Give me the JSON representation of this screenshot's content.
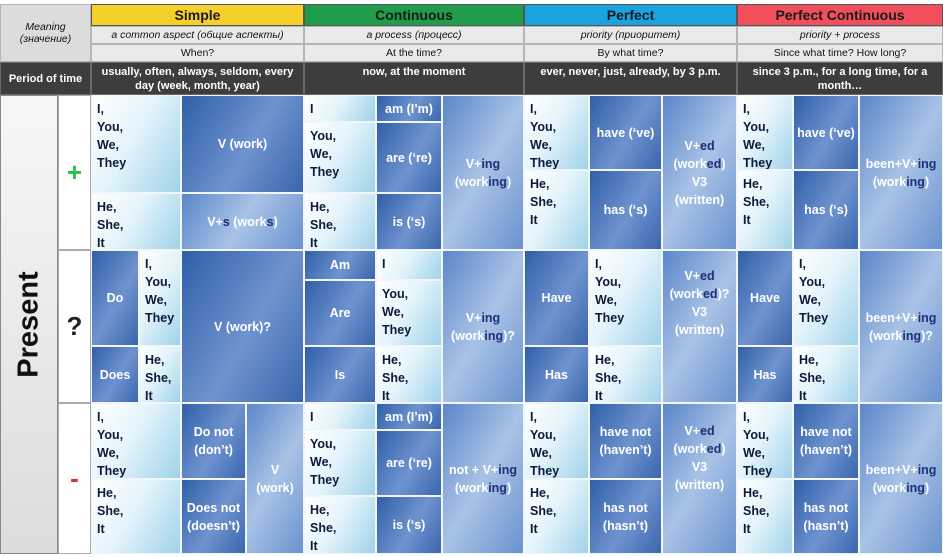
{
  "corner": {
    "meaning": "Meaning",
    "meaning_ru": "(значение)",
    "period": "Period of time"
  },
  "tenses": {
    "simple": {
      "name": "Simple",
      "meaning": "a common aspect (общие аспекты)",
      "question": "When?",
      "period": "usually, often, always, seldom, every day (week, month, year)"
    },
    "continuous": {
      "name": "Continuous",
      "meaning": "a process (процесс)",
      "question": "At the time?",
      "period": "now, at the moment"
    },
    "perfect": {
      "name": "Perfect",
      "meaning": "priority (приоритет)",
      "question": "By what time?",
      "period": "ever, never, just, already, by 3 p.m."
    },
    "perfect_continuous": {
      "name": "Perfect Continuous",
      "meaning": "priority + process",
      "question": "Since what time? How long?",
      "period": "since 3 p.m., for a long time, for a month…"
    }
  },
  "side_label": "Present",
  "signs": {
    "plus": "+",
    "question": "?",
    "minus": "-"
  },
  "pronouns": {
    "i": "I,",
    "i_bare": "I",
    "you": "You,",
    "we": "We,",
    "they": "They",
    "he": "He,",
    "she": "She,",
    "it": "It"
  },
  "simple": {
    "pos_v": "V (work)",
    "pos_vs_a": "V+",
    "pos_vs_b": "s",
    "pos_vs_c": " (work",
    "pos_vs_d": "s",
    "pos_vs_e": ")",
    "q_do": "Do",
    "q_does": "Does",
    "q_v": "V (work)?",
    "neg_do": "Do not (don’t)",
    "neg_does": "Does not (doesn’t)",
    "neg_v": "V (work)"
  },
  "continuous": {
    "am": "am (I’m)",
    "are": "are (‘re)",
    "is": "is (‘s)",
    "ving_a": "V+",
    "ving_b": "ing",
    "ving_c": "(work",
    "ving_d": "ing",
    "ving_e": ")",
    "q_am": "Am",
    "q_are": "Are",
    "q_is": "Is",
    "q_suffix": ")?",
    "neg_prefix": "not + V+"
  },
  "perfect": {
    "have": "have (‘ve)",
    "has": "has (‘s)",
    "ved_a": "V+",
    "ved_b": "ed",
    "ved_c": "(work",
    "ved_d": "ed",
    "ved_e": ")",
    "v3": "V3",
    "written": "(written)",
    "q_suffix": ")?",
    "q_have": "Have",
    "q_has": "Has",
    "neg_have": "have not (haven’t)",
    "neg_has": "has not (hasn’t)"
  },
  "perfect_continuous": {
    "have": "have (‘ve)",
    "has": "has (‘s)",
    "been_a": "been+V+",
    "been_b": "ing",
    "been_c": "(work",
    "been_d": "ing",
    "been_e": ")",
    "q_suffix": ")?",
    "q_have": "Have",
    "q_has": "Has",
    "neg_have": "have not (haven’t)",
    "neg_has": "has not (hasn’t)"
  }
}
